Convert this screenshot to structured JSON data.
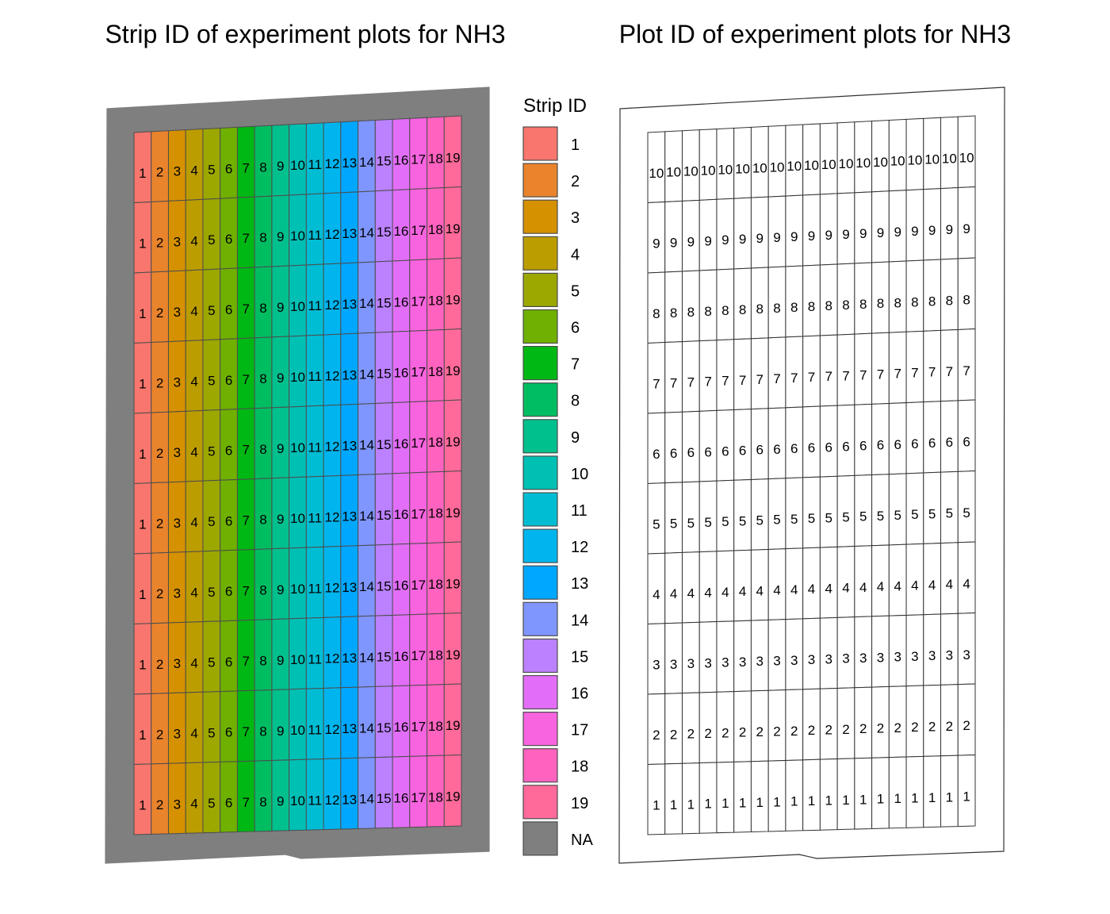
{
  "left_panel": {
    "title": "Strip ID of experiment plots for NH3",
    "field_fill": "#7f7f7f"
  },
  "right_panel": {
    "title": "Plot ID of experiment plots for NH3",
    "cell_fill": "#ffffff"
  },
  "legend": {
    "title": "Strip ID",
    "items": [
      {
        "label": "1",
        "color": "#f8766d"
      },
      {
        "label": "2",
        "color": "#e9842c"
      },
      {
        "label": "3",
        "color": "#d69100"
      },
      {
        "label": "4",
        "color": "#bc9d00"
      },
      {
        "label": "5",
        "color": "#9ca700"
      },
      {
        "label": "6",
        "color": "#6fb000"
      },
      {
        "label": "7",
        "color": "#00b813"
      },
      {
        "label": "8",
        "color": "#00bd61"
      },
      {
        "label": "9",
        "color": "#00c08e"
      },
      {
        "label": "10",
        "color": "#00c0b4"
      },
      {
        "label": "11",
        "color": "#00bdd4"
      },
      {
        "label": "12",
        "color": "#00b5ee"
      },
      {
        "label": "13",
        "color": "#00a7ff"
      },
      {
        "label": "14",
        "color": "#7f96ff"
      },
      {
        "label": "15",
        "color": "#bc81ff"
      },
      {
        "label": "16",
        "color": "#e26ef7"
      },
      {
        "label": "17",
        "color": "#f863df"
      },
      {
        "label": "18",
        "color": "#ff62bf"
      },
      {
        "label": "19",
        "color": "#ff6a9a"
      },
      {
        "label": "NA",
        "color": "#7f7f7f"
      }
    ]
  },
  "chart_data": {
    "type": "heatmap",
    "strips": [
      "1",
      "2",
      "3",
      "4",
      "5",
      "6",
      "7",
      "8",
      "9",
      "10",
      "11",
      "12",
      "13",
      "14",
      "15",
      "16",
      "17",
      "18",
      "19"
    ],
    "plots_top_to_bottom": [
      "10",
      "9",
      "8",
      "7",
      "6",
      "5",
      "4",
      "3",
      "2",
      "1"
    ]
  }
}
